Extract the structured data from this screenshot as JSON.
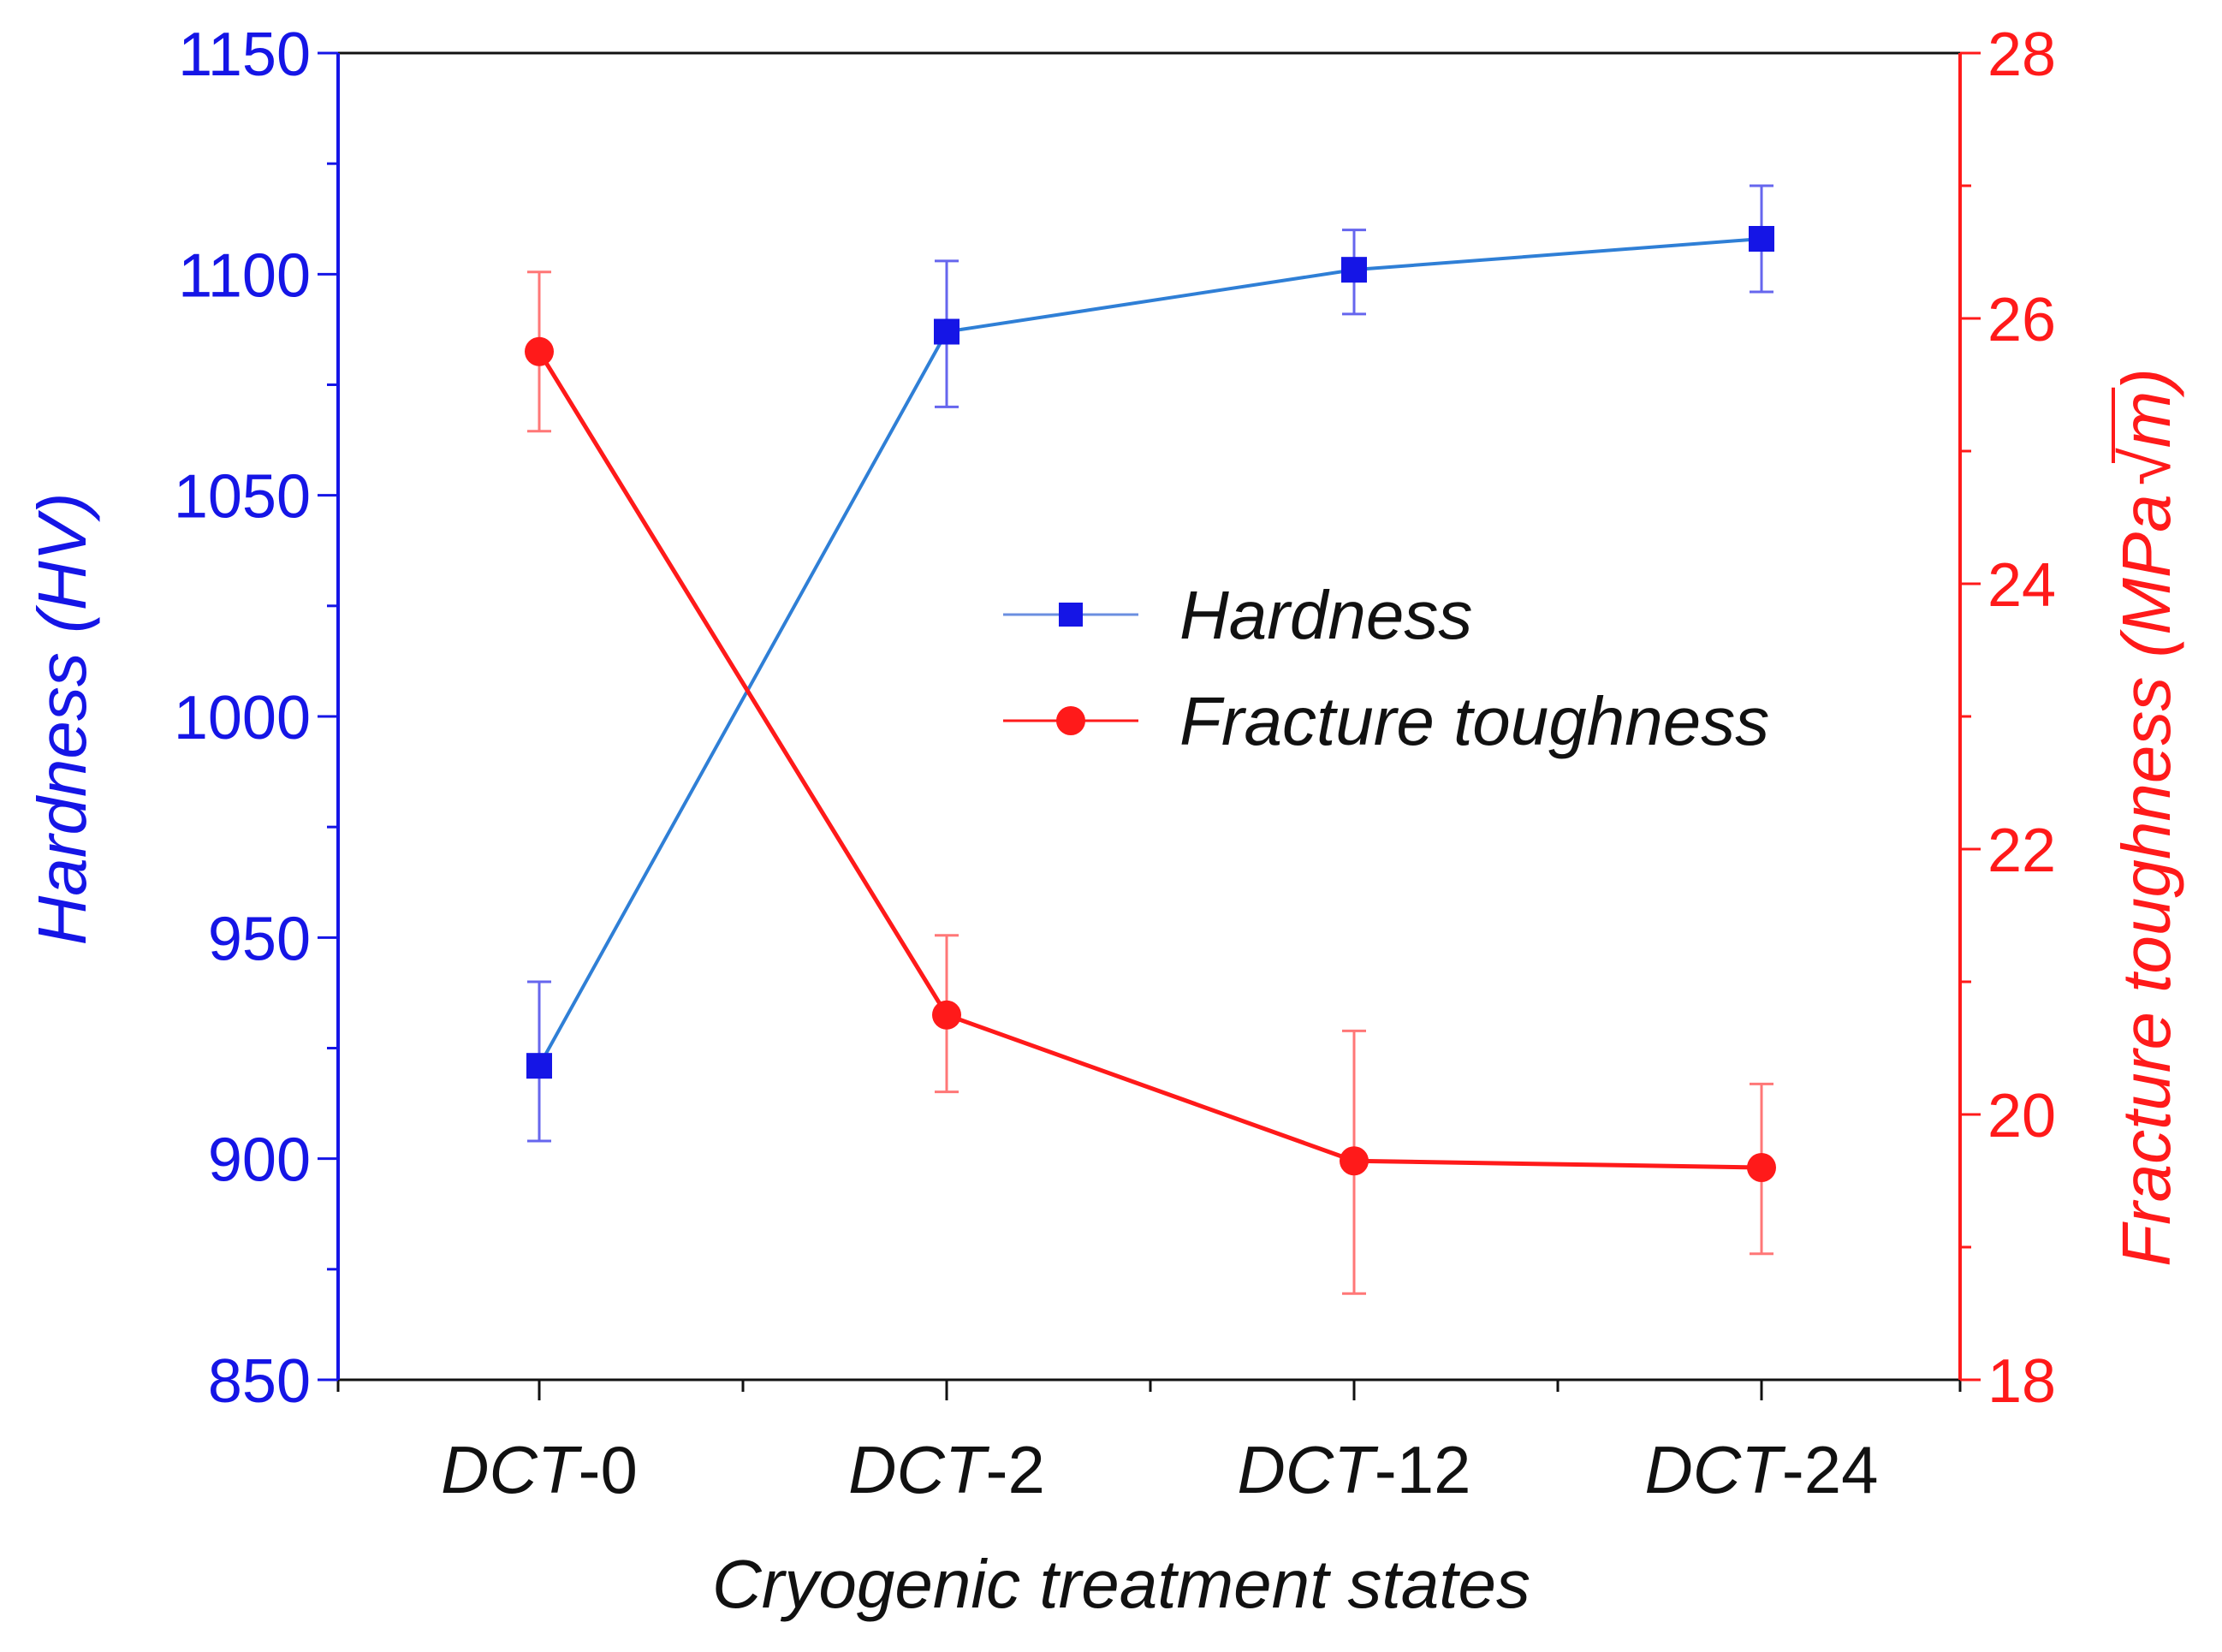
{
  "chart_data": {
    "type": "line",
    "categories": [
      "DCT-0",
      "DCT-2",
      "DCT-12",
      "DCT-24"
    ],
    "category_labels": [
      {
        "prefix": "DCT",
        "suffix": "-0"
      },
      {
        "prefix": "DCT",
        "suffix": "-2"
      },
      {
        "prefix": "DCT",
        "suffix": "-12"
      },
      {
        "prefix": "DCT",
        "suffix": "-24"
      }
    ],
    "xlabel": "Cryogenic treatment states",
    "y_left": {
      "label_main": "Hardness (",
      "label_unit": "HV",
      "label_close": ")",
      "ylim": [
        850,
        1150
      ],
      "ticks": [
        850,
        900,
        950,
        1000,
        1050,
        1100,
        1150
      ],
      "color": "#1515e6"
    },
    "y_right": {
      "label_main": "Fracture toughness (",
      "label_unit": "MPa",
      "label_root": "√",
      "label_root_arg": "m",
      "label_close": ")",
      "ylim": [
        18,
        28
      ],
      "ticks": [
        18,
        20,
        22,
        24,
        26,
        28
      ],
      "color": "#ff1a1a"
    },
    "series": [
      {
        "name": "Hardness",
        "axis": "left",
        "marker": "square",
        "color": "#1515e6",
        "line_color": "#2f7fd6",
        "values": [
          921,
          1087,
          1101,
          1108
        ],
        "error_low": [
          904,
          1070,
          1091,
          1096
        ],
        "error_high": [
          940,
          1103,
          1110,
          1120
        ]
      },
      {
        "name": "Fracture toughness",
        "axis": "right",
        "marker": "circle",
        "color": "#ff1a1a",
        "line_color": "#ff1a1a",
        "values": [
          25.75,
          20.75,
          19.65,
          19.6
        ],
        "error_low": [
          25.15,
          20.17,
          18.65,
          18.95
        ],
        "error_high": [
          26.35,
          21.35,
          20.63,
          20.23
        ]
      }
    ],
    "legend": {
      "position": "center-right",
      "entries": [
        "Hardness",
        "Fracture toughness"
      ]
    }
  }
}
